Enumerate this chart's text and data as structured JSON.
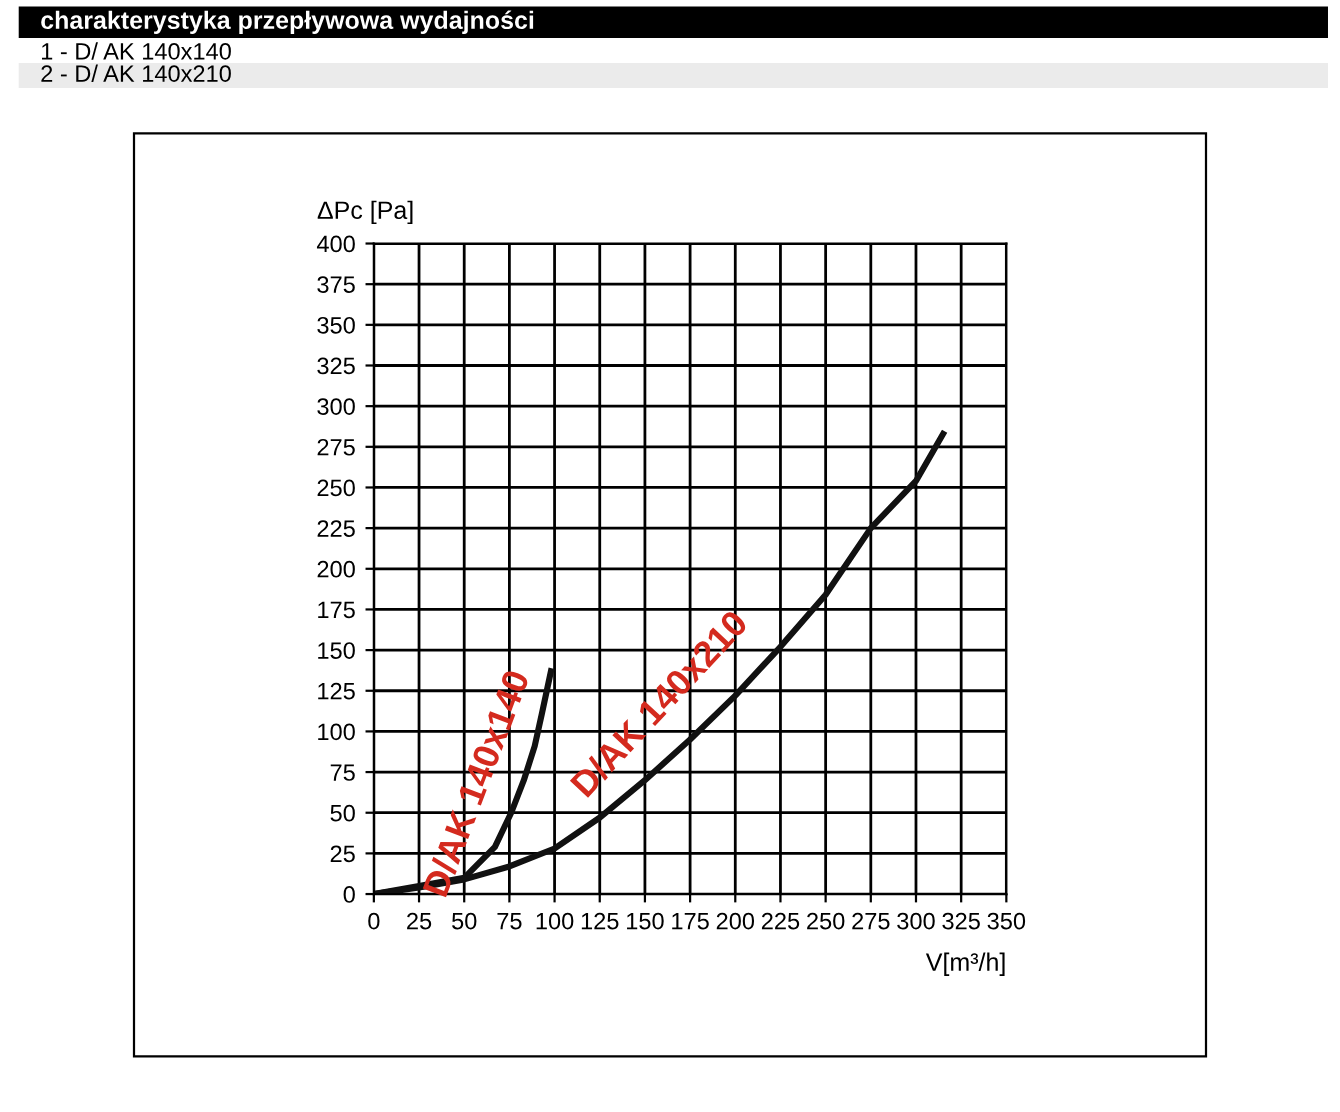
{
  "chart_data": {
    "type": "line",
    "title": "charakterystyka przepływowa wydajności",
    "annotations": [
      "1 - D/ AK 140x140",
      "2 - D/ AK 140x210"
    ],
    "xlabel": "V[m³/h]",
    "ylabel": "ΔPc [Pa]",
    "series": [
      {
        "name": "D/AK 140x140",
        "color": "#111111",
        "x": [
          0,
          25,
          50,
          67,
          76,
          83,
          89,
          93,
          98
        ],
        "values": [
          0,
          5,
          10,
          29,
          50,
          70,
          91,
          111,
          137
        ]
      },
      {
        "name": "D/AK 140x210",
        "color": "#111111",
        "x": [
          0,
          25,
          50,
          75,
          100,
          125,
          150,
          175,
          200,
          225,
          250,
          275,
          300,
          315
        ],
        "values": [
          0,
          4,
          9,
          17,
          28,
          47,
          70,
          95,
          122,
          152,
          184,
          225,
          254,
          283
        ]
      }
    ],
    "xlim": [
      0,
      350
    ],
    "xticks": [
      0,
      25,
      50,
      75,
      100,
      125,
      150,
      175,
      200,
      225,
      250,
      275,
      300,
      325,
      350
    ],
    "ylim": [
      0,
      400
    ],
    "yticks": [
      0,
      25,
      50,
      75,
      100,
      125,
      150,
      175,
      200,
      225,
      250,
      275,
      300,
      325,
      350,
      375,
      400
    ],
    "grid": true,
    "legend": false,
    "marker": "none",
    "line_style": "solid"
  }
}
